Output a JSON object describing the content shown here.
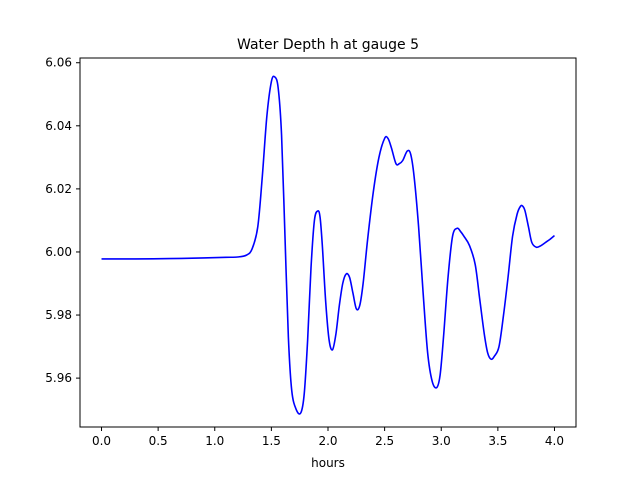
{
  "chart_data": {
    "type": "line",
    "title": "Water Depth h at gauge 5",
    "xlabel": "hours",
    "ylabel": "",
    "xlim": [
      -0.19,
      4.19
    ],
    "ylim": [
      5.9445,
      6.0615
    ],
    "x_ticks": [
      0.0,
      0.5,
      1.0,
      1.5,
      2.0,
      2.5,
      3.0,
      3.5,
      4.0
    ],
    "x_tick_labels": [
      "0.0",
      "0.5",
      "1.0",
      "1.5",
      "2.0",
      "2.5",
      "3.0",
      "3.5",
      "4.0"
    ],
    "y_ticks": [
      5.96,
      5.98,
      6.0,
      6.02,
      6.04,
      6.06
    ],
    "y_tick_labels": [
      "5.96",
      "5.98",
      "6.00",
      "6.02",
      "6.04",
      "6.06"
    ],
    "grid": false,
    "legend": false,
    "series": [
      {
        "color": "#0000ff",
        "x": [
          0.0,
          0.3,
          0.6,
          0.9,
          1.1,
          1.2,
          1.28,
          1.33,
          1.38,
          1.42,
          1.46,
          1.5,
          1.53,
          1.56,
          1.59,
          1.62,
          1.65,
          1.68,
          1.72,
          1.76,
          1.79,
          1.82,
          1.85,
          1.88,
          1.91,
          1.93,
          1.95,
          1.98,
          2.01,
          2.04,
          2.07,
          2.1,
          2.13,
          2.16,
          2.19,
          2.22,
          2.25,
          2.28,
          2.31,
          2.35,
          2.4,
          2.45,
          2.5,
          2.53,
          2.56,
          2.6,
          2.63,
          2.66,
          2.7,
          2.73,
          2.76,
          2.8,
          2.84,
          2.88,
          2.92,
          2.96,
          2.99,
          3.02,
          3.06,
          3.1,
          3.14,
          3.17,
          3.2,
          3.25,
          3.3,
          3.34,
          3.38,
          3.41,
          3.44,
          3.47,
          3.51,
          3.55,
          3.59,
          3.63,
          3.67,
          3.7,
          3.72,
          3.74,
          3.77,
          3.8,
          3.84,
          3.88,
          3.92,
          3.96,
          4.0
        ],
        "y": [
          5.9978,
          5.9978,
          5.9979,
          5.9981,
          5.9983,
          5.9984,
          5.999,
          6.001,
          6.008,
          6.024,
          6.043,
          6.054,
          6.0555,
          6.052,
          6.037,
          6.005,
          5.973,
          5.956,
          5.95,
          5.949,
          5.955,
          5.972,
          5.995,
          6.01,
          6.013,
          6.011,
          6.002,
          5.984,
          5.972,
          5.969,
          5.974,
          5.983,
          5.99,
          5.993,
          5.992,
          5.987,
          5.982,
          5.983,
          5.99,
          6.004,
          6.019,
          6.03,
          6.036,
          6.036,
          6.033,
          6.028,
          6.028,
          6.029,
          6.032,
          6.031,
          6.024,
          6.008,
          5.987,
          5.968,
          5.959,
          5.957,
          5.961,
          5.973,
          5.992,
          6.005,
          6.0075,
          6.0065,
          6.005,
          6.002,
          5.996,
          5.985,
          5.974,
          5.968,
          5.966,
          5.967,
          5.97,
          5.98,
          5.992,
          6.005,
          6.012,
          6.0145,
          6.0145,
          6.013,
          6.008,
          6.003,
          6.0015,
          6.002,
          6.003,
          6.004,
          6.0052
        ]
      }
    ]
  }
}
